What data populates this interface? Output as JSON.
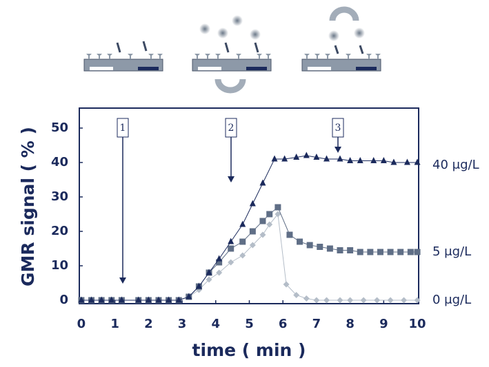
{
  "chart_data": {
    "type": "line",
    "y_label": "GMR signal ( % )",
    "x_label": "time ( min )",
    "xlim": [
      -0.06,
      10.04
    ],
    "ylim": [
      -1,
      55.8
    ],
    "xticks": [
      0,
      1,
      2,
      3,
      4,
      5,
      6,
      7,
      8,
      9,
      10
    ],
    "yticks": [
      0,
      10,
      20,
      30,
      40,
      50
    ],
    "annotations": [
      "1",
      "2",
      "3"
    ],
    "series": [
      {
        "name": "40 μg/L",
        "color": "#1b2a5c",
        "marker": "triangle",
        "x": [
          0,
          0.3,
          0.6,
          0.9,
          1.2,
          1.7,
          2.0,
          2.3,
          2.6,
          2.9,
          3.2,
          3.5,
          3.8,
          4.1,
          4.45,
          4.8,
          5.1,
          5.4,
          5.75,
          6.05,
          6.4,
          6.7,
          7.0,
          7.3,
          7.7,
          8.0,
          8.3,
          8.7,
          9.0,
          9.3,
          9.7,
          10.0
        ],
        "values": [
          0,
          0,
          0,
          0,
          0,
          0,
          0,
          0,
          0,
          0,
          1,
          4,
          8,
          12,
          17,
          22,
          28,
          34,
          41,
          41,
          41.5,
          42,
          41.5,
          41,
          41,
          40.5,
          40.5,
          40.5,
          40.5,
          40,
          40,
          40
        ]
      },
      {
        "name": "5 μg/L",
        "color": "#5f6e86",
        "marker": "square",
        "x": [
          0,
          0.3,
          0.6,
          0.9,
          1.2,
          1.7,
          2.0,
          2.3,
          2.6,
          2.9,
          3.2,
          3.5,
          3.8,
          4.1,
          4.45,
          4.8,
          5.1,
          5.4,
          5.6,
          5.85,
          6.2,
          6.5,
          6.8,
          7.1,
          7.4,
          7.7,
          8.0,
          8.3,
          8.6,
          8.9,
          9.2,
          9.5,
          9.8,
          10.0
        ],
        "values": [
          0,
          0,
          0,
          0,
          0,
          0,
          0,
          0,
          0,
          0,
          1,
          4,
          8,
          11,
          15,
          17,
          20,
          23,
          25,
          27,
          19,
          17,
          16,
          15.5,
          15,
          14.5,
          14.5,
          14,
          14,
          14,
          14,
          14,
          14,
          14
        ]
      },
      {
        "name": "0 μg/L",
        "color": "#b4bdc8",
        "marker": "diamond",
        "x": [
          3.2,
          3.5,
          3.8,
          4.1,
          4.45,
          4.8,
          5.1,
          5.4,
          5.6,
          5.85,
          6.1,
          6.4,
          6.7,
          7.0,
          7.3,
          7.7,
          8.0,
          8.4,
          8.8,
          9.2,
          9.6,
          10.0
        ],
        "values": [
          1,
          3,
          6,
          8,
          11,
          13,
          16,
          19,
          22,
          25,
          4.6,
          1.5,
          0.5,
          0,
          0,
          0,
          0,
          0,
          0,
          0,
          0,
          0
        ]
      }
    ]
  }
}
